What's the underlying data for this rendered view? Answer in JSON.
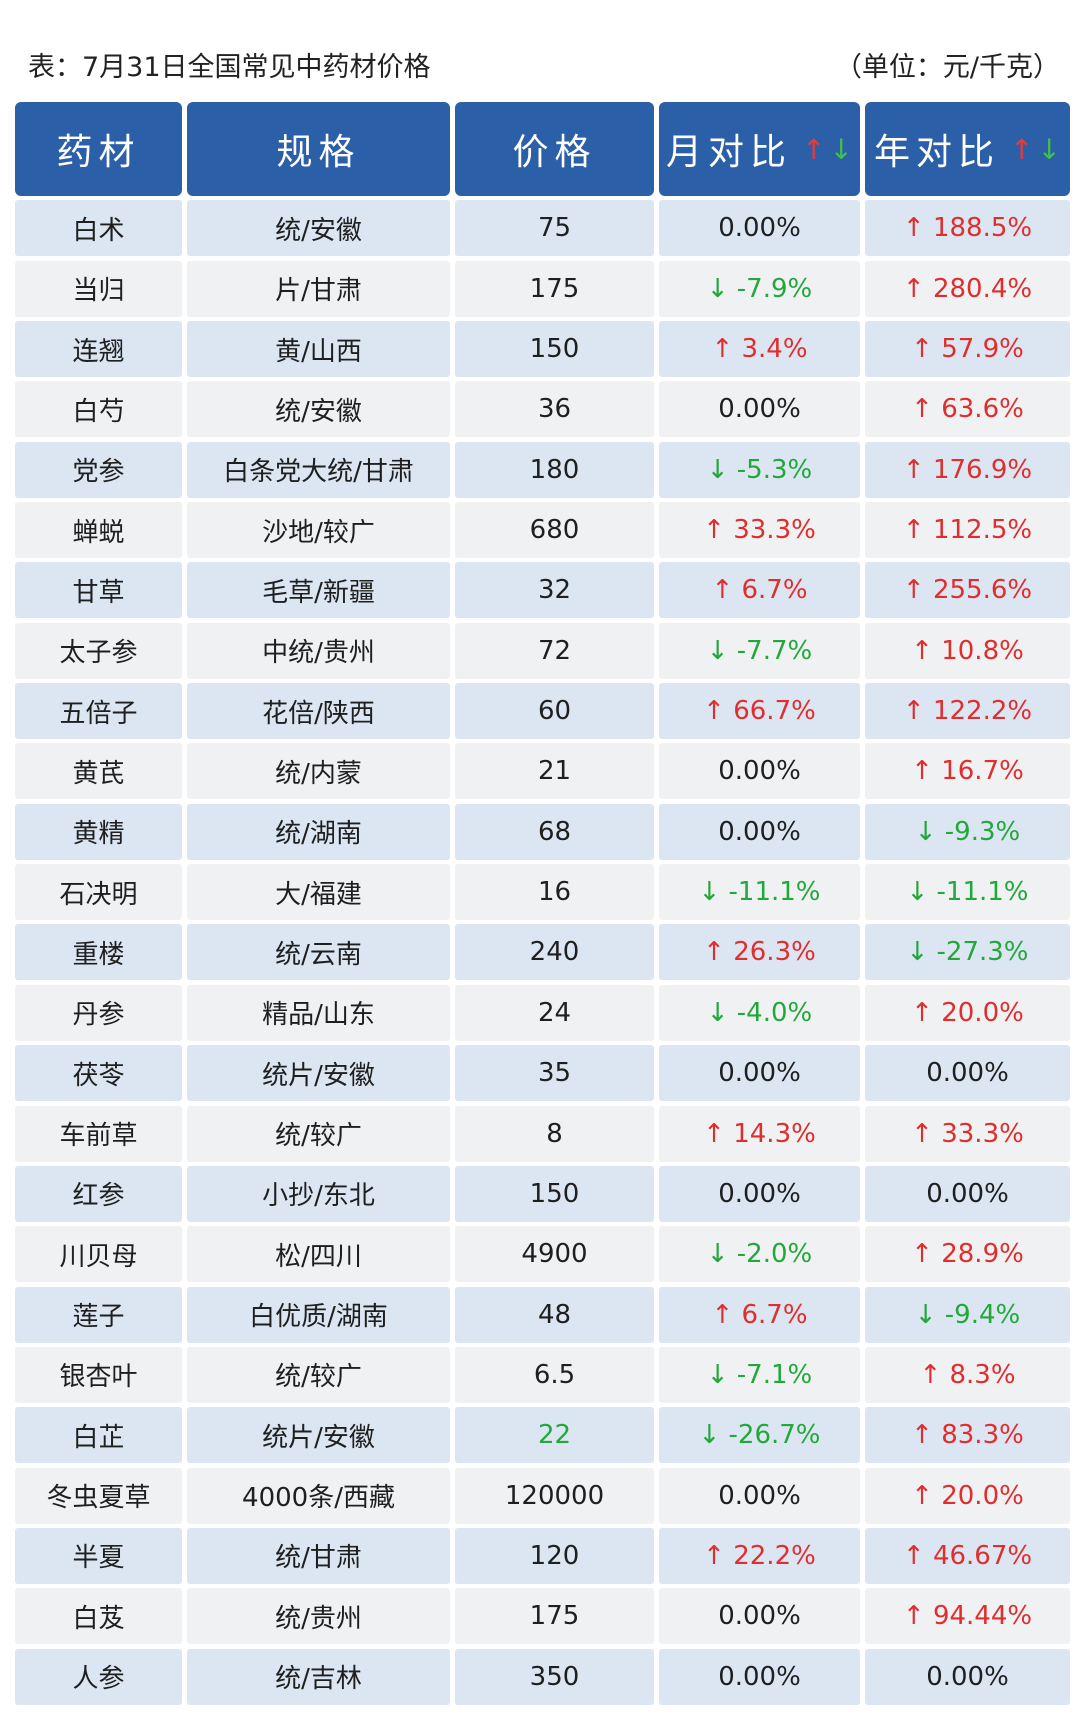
{
  "caption": {
    "title": "表：7月31日全国常见中药材价格",
    "unit": "（单位：元/千克）"
  },
  "header": {
    "col1": "药材",
    "col2": "规格",
    "col3": "价格",
    "col4": "月对比",
    "col5": "年对比",
    "arrow_up": "↑",
    "arrow_down": "↓"
  },
  "colors": {
    "header_bg": "#2b5fa8",
    "up": "#e02e2e",
    "down": "#22a83a",
    "row_odd": "#dbe6f2",
    "row_even": "#f0f1f3"
  },
  "rows": [
    {
      "name": "白术",
      "spec": "统/安徽",
      "price": "75",
      "mom": "0.00%",
      "yoy": "↑ 188.5%",
      "price_dir": "flat",
      "mom_dir": "flat",
      "yoy_dir": "up"
    },
    {
      "name": "当归",
      "spec": "片/甘肃",
      "price": "175",
      "mom": "↓ -7.9%",
      "yoy": "↑ 280.4%",
      "price_dir": "flat",
      "mom_dir": "down",
      "yoy_dir": "up"
    },
    {
      "name": "连翘",
      "spec": "黄/山西",
      "price": "150",
      "mom": "↑ 3.4%",
      "yoy": "↑ 57.9%",
      "price_dir": "flat",
      "mom_dir": "up",
      "yoy_dir": "up"
    },
    {
      "name": "白芍",
      "spec": "统/安徽",
      "price": "36",
      "mom": "0.00%",
      "yoy": "↑ 63.6%",
      "price_dir": "flat",
      "mom_dir": "flat",
      "yoy_dir": "up"
    },
    {
      "name": "党参",
      "spec": "白条党大统/甘肃",
      "price": "180",
      "mom": "↓ -5.3%",
      "yoy": "↑ 176.9%",
      "price_dir": "flat",
      "mom_dir": "down",
      "yoy_dir": "up"
    },
    {
      "name": "蝉蜕",
      "spec": "沙地/较广",
      "price": "680",
      "mom": "↑ 33.3%",
      "yoy": "↑ 112.5%",
      "price_dir": "flat",
      "mom_dir": "up",
      "yoy_dir": "up"
    },
    {
      "name": "甘草",
      "spec": "毛草/新疆",
      "price": "32",
      "mom": "↑ 6.7%",
      "yoy": "↑ 255.6%",
      "price_dir": "flat",
      "mom_dir": "up",
      "yoy_dir": "up"
    },
    {
      "name": "太子参",
      "spec": "中统/贵州",
      "price": "72",
      "mom": "↓ -7.7%",
      "yoy": "↑ 10.8%",
      "price_dir": "flat",
      "mom_dir": "down",
      "yoy_dir": "up"
    },
    {
      "name": "五倍子",
      "spec": "花倍/陕西",
      "price": "60",
      "mom": "↑ 66.7%",
      "yoy": "↑ 122.2%",
      "price_dir": "flat",
      "mom_dir": "up",
      "yoy_dir": "up"
    },
    {
      "name": "黄芪",
      "spec": "统/内蒙",
      "price": "21",
      "mom": "0.00%",
      "yoy": "↑ 16.7%",
      "price_dir": "flat",
      "mom_dir": "flat",
      "yoy_dir": "up"
    },
    {
      "name": "黄精",
      "spec": "统/湖南",
      "price": "68",
      "mom": "0.00%",
      "yoy": "↓ -9.3%",
      "price_dir": "flat",
      "mom_dir": "flat",
      "yoy_dir": "down"
    },
    {
      "name": "石决明",
      "spec": "大/福建",
      "price": "16",
      "mom": "↓ -11.1%",
      "yoy": "↓ -11.1%",
      "price_dir": "flat",
      "mom_dir": "down",
      "yoy_dir": "down"
    },
    {
      "name": "重楼",
      "spec": "统/云南",
      "price": "240",
      "mom": "↑ 26.3%",
      "yoy": "↓ -27.3%",
      "price_dir": "flat",
      "mom_dir": "up",
      "yoy_dir": "down"
    },
    {
      "name": "丹参",
      "spec": "精品/山东",
      "price": "24",
      "mom": "↓ -4.0%",
      "yoy": "↑ 20.0%",
      "price_dir": "flat",
      "mom_dir": "down",
      "yoy_dir": "up"
    },
    {
      "name": "茯苓",
      "spec": "统片/安徽",
      "price": "35",
      "mom": "0.00%",
      "yoy": "0.00%",
      "price_dir": "flat",
      "mom_dir": "flat",
      "yoy_dir": "flat"
    },
    {
      "name": "车前草",
      "spec": "统/较广",
      "price": "8",
      "mom": "↑ 14.3%",
      "yoy": "↑ 33.3%",
      "price_dir": "flat",
      "mom_dir": "up",
      "yoy_dir": "up"
    },
    {
      "name": "红参",
      "spec": "小抄/东北",
      "price": "150",
      "mom": "0.00%",
      "yoy": "0.00%",
      "price_dir": "flat",
      "mom_dir": "flat",
      "yoy_dir": "flat"
    },
    {
      "name": "川贝母",
      "spec": "松/四川",
      "price": "4900",
      "mom": "↓ -2.0%",
      "yoy": "↑ 28.9%",
      "price_dir": "flat",
      "mom_dir": "down",
      "yoy_dir": "up"
    },
    {
      "name": "莲子",
      "spec": "白优质/湖南",
      "price": "48",
      "mom": "↑ 6.7%",
      "yoy": "↓ -9.4%",
      "price_dir": "flat",
      "mom_dir": "up",
      "yoy_dir": "down"
    },
    {
      "name": "银杏叶",
      "spec": "统/较广",
      "price": "6.5",
      "mom": "↓ -7.1%",
      "yoy": "↑ 8.3%",
      "price_dir": "flat",
      "mom_dir": "down",
      "yoy_dir": "up"
    },
    {
      "name": "白芷",
      "spec": "统片/安徽",
      "price": "22",
      "mom": "↓ -26.7%",
      "yoy": "↑ 83.3%",
      "price_dir": "down",
      "mom_dir": "down",
      "yoy_dir": "up"
    },
    {
      "name": "冬虫夏草",
      "spec": "4000条/西藏",
      "price": "120000",
      "mom": "0.00%",
      "yoy": "↑ 20.0%",
      "price_dir": "flat",
      "mom_dir": "flat",
      "yoy_dir": "up"
    },
    {
      "name": "半夏",
      "spec": "统/甘肃",
      "price": "120",
      "mom": "↑ 22.2%",
      "yoy": "↑ 46.67%",
      "price_dir": "flat",
      "mom_dir": "up",
      "yoy_dir": "up"
    },
    {
      "name": "白芨",
      "spec": "统/贵州",
      "price": "175",
      "mom": "0.00%",
      "yoy": "↑ 94.44%",
      "price_dir": "flat",
      "mom_dir": "flat",
      "yoy_dir": "up"
    },
    {
      "name": "人参",
      "spec": "统/吉林",
      "price": "350",
      "mom": "0.00%",
      "yoy": "0.00%",
      "price_dir": "flat",
      "mom_dir": "flat",
      "yoy_dir": "flat"
    }
  ]
}
